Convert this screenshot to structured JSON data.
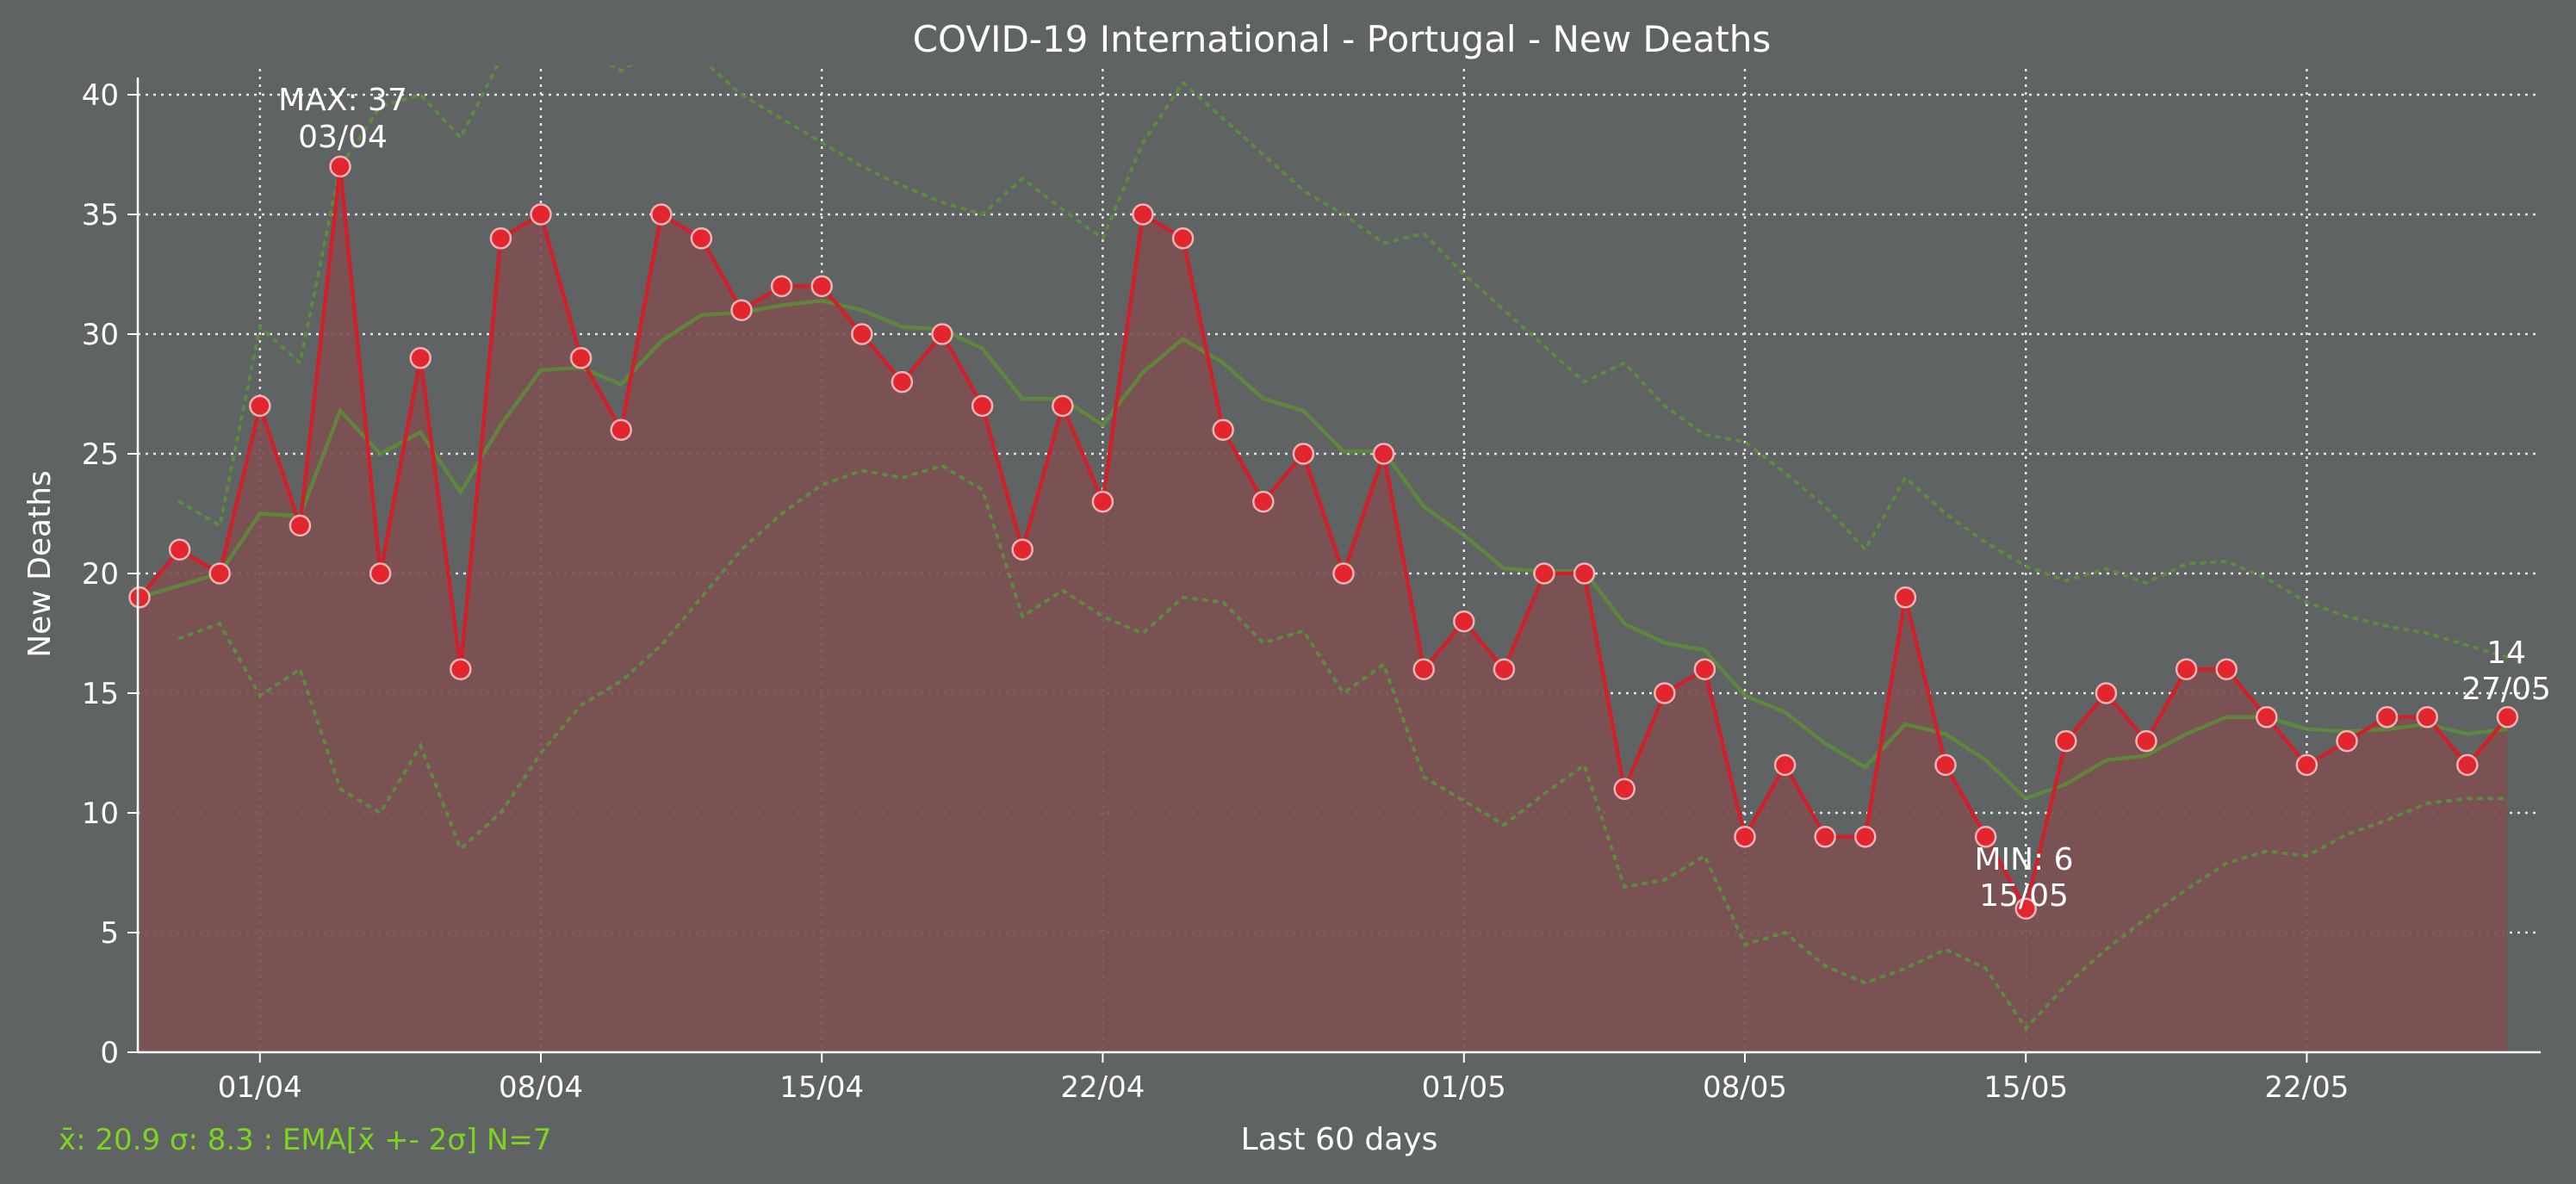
{
  "chart_data": {
    "type": "line",
    "title": "COVID-19 International - Portugal - New Deaths",
    "xlabel": "Last 60 days",
    "ylabel": "New Deaths",
    "ylim": [
      0,
      40
    ],
    "yticks": [
      "0",
      "5",
      "10",
      "15",
      "20",
      "25",
      "30",
      "35",
      "40"
    ],
    "xticks": [
      {
        "date": "2020-04-01",
        "label": "01/04"
      },
      {
        "date": "2020-04-08",
        "label": "08/04"
      },
      {
        "date": "2020-04-15",
        "label": "15/04"
      },
      {
        "date": "2020-04-22",
        "label": "22/04"
      },
      {
        "date": "2020-05-01",
        "label": "01/05"
      },
      {
        "date": "2020-05-08",
        "label": "08/05"
      },
      {
        "date": "2020-05-15",
        "label": "15/05"
      },
      {
        "date": "2020-05-22",
        "label": "22/05"
      }
    ],
    "x_start": "2020-03-29",
    "grid": true,
    "colors": {
      "background": "#606363",
      "line": "#d0202a",
      "marker": "#e3262e",
      "marker_edge": "#e8b4b4",
      "fill": "#7e5052",
      "ema": "#5d8a3a",
      "band": "#5a8c3c",
      "stats": "#7dd420",
      "text": "#ffffff",
      "grid": "#e6e6e6"
    },
    "series": [
      {
        "name": "New Deaths",
        "values": [
          19,
          21,
          20,
          27,
          22,
          37,
          20,
          29,
          16,
          34,
          35,
          29,
          26,
          35,
          34,
          31,
          32,
          32,
          30,
          28,
          30,
          27,
          21,
          27,
          23,
          35,
          34,
          26,
          23,
          25,
          20,
          25,
          16,
          18,
          16,
          20,
          20,
          11,
          15,
          16,
          9,
          12,
          9,
          9,
          19,
          12,
          9,
          6,
          13,
          15,
          13,
          16,
          16,
          14,
          12,
          13,
          14,
          14,
          12,
          14
        ]
      },
      {
        "name": "EMA",
        "values": [
          19,
          19.5,
          20,
          22.5,
          22.4,
          26.8,
          25,
          25.9,
          23.4,
          26.2,
          28.5,
          28.6,
          27.9,
          29.7,
          30.8,
          30.9,
          31.2,
          31.4,
          31,
          30.3,
          30.2,
          29.4,
          27.3,
          27.3,
          26.2,
          28.4,
          29.8,
          28.8,
          27.3,
          26.8,
          25.1,
          25.1,
          22.8,
          21.6,
          20.2,
          20.1,
          20.1,
          17.9,
          17.1,
          16.8,
          14.9,
          14.2,
          12.9,
          11.9,
          13.7,
          13.3,
          12.2,
          10.6,
          11.2,
          12.2,
          12.4,
          13.3,
          14,
          14,
          13.5,
          13.4,
          13.5,
          13.7,
          13.3,
          13.5
        ]
      },
      {
        "name": "EMA + 2σ",
        "values": [
          null,
          23,
          22,
          30.3,
          28.8,
          37,
          39.5,
          40,
          38.2,
          41.5,
          42.5,
          42,
          41,
          42,
          41.5,
          40,
          39,
          38,
          37,
          36.2,
          35.5,
          35,
          36.5,
          35.2,
          34,
          38,
          40.5,
          39,
          37.5,
          36,
          35,
          33.8,
          34.2,
          32.5,
          31,
          29.5,
          28,
          28.8,
          27,
          25.8,
          25.5,
          24.2,
          22.8,
          21,
          24,
          22.5,
          21.3,
          20.3,
          19.7,
          20.2,
          19.6,
          20.4,
          20.5,
          19.8,
          18.8,
          18.2,
          17.8,
          17.5,
          17,
          16.5
        ]
      },
      {
        "name": "EMA - 2σ",
        "values": [
          null,
          17.3,
          17.9,
          14.9,
          16,
          11,
          10,
          12.8,
          8.5,
          10,
          12.5,
          14.5,
          15.5,
          17,
          19,
          21,
          22.5,
          23.7,
          24.3,
          24,
          24.5,
          23.5,
          18.2,
          19.3,
          18.2,
          17.5,
          19,
          18.8,
          17.1,
          17.6,
          15,
          16.2,
          11.5,
          10.5,
          9.5,
          10.8,
          12,
          6.9,
          7.2,
          8.2,
          4.5,
          5,
          3.6,
          2.9,
          3.5,
          4.3,
          3.5,
          1,
          2.8,
          4.3,
          5.6,
          6.8,
          7.9,
          8.4,
          8.2,
          9.1,
          9.7,
          10.4,
          10.6,
          10.6
        ]
      }
    ],
    "annotations": {
      "max": {
        "label": "MAX: 37",
        "date": "03/04",
        "index": 5,
        "value": 37
      },
      "min": {
        "label": "MIN: 6",
        "date": "15/05",
        "index": 47,
        "value": 6
      },
      "last": {
        "label": "14",
        "date": "27/05",
        "index": 59,
        "value": 14
      }
    },
    "stats_text": "x̄: 20.9 σ: 8.3 : EMA[x̄ +- 2σ] N=7"
  }
}
